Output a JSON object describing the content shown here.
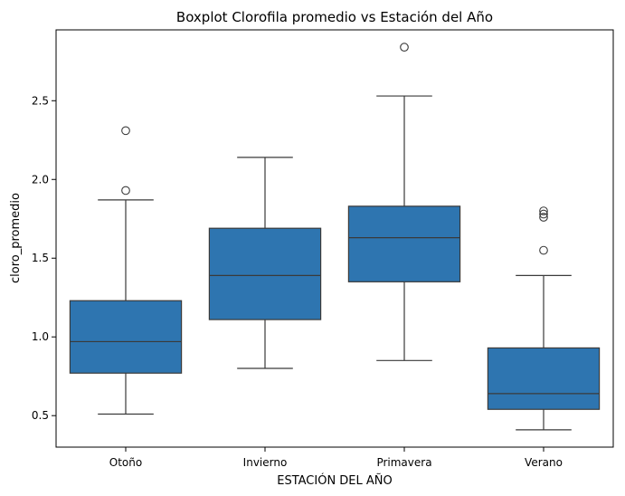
{
  "chart_data": {
    "type": "boxplot",
    "title": "Boxplot Clorofila promedio vs Estación del Año",
    "xlabel": "ESTACIÓN DEL AÑO",
    "ylabel": "cloro_promedio",
    "ylim": [
      0.3,
      2.95
    ],
    "yticks": [
      0.5,
      1.0,
      1.5,
      2.0,
      2.5
    ],
    "ytick_labels": [
      "0.5",
      "1.0",
      "1.5",
      "2.0",
      "2.5"
    ],
    "grid": false,
    "box_color": "#2e75b0",
    "line_color": "#3a3a3a",
    "categories": [
      "Otoño",
      "Invierno",
      "Primavera",
      "Verano"
    ],
    "boxes": [
      {
        "whisker_low": 0.51,
        "q1": 0.77,
        "median": 0.97,
        "q3": 1.23,
        "whisker_high": 1.87,
        "outliers": [
          1.93,
          2.31
        ]
      },
      {
        "whisker_low": 0.8,
        "q1": 1.11,
        "median": 1.39,
        "q3": 1.69,
        "whisker_high": 2.14,
        "outliers": []
      },
      {
        "whisker_low": 0.85,
        "q1": 1.35,
        "median": 1.63,
        "q3": 1.83,
        "whisker_high": 2.53,
        "outliers": [
          2.84
        ]
      },
      {
        "whisker_low": 0.41,
        "q1": 0.54,
        "median": 0.64,
        "q3": 0.93,
        "whisker_high": 1.39,
        "outliers": [
          1.55,
          1.76,
          1.78,
          1.8
        ]
      }
    ]
  }
}
